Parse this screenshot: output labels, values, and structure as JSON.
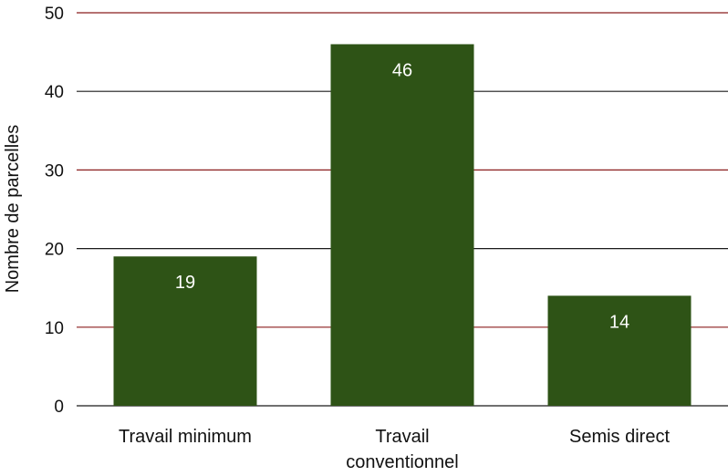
{
  "chart_data": {
    "type": "bar",
    "categories": [
      [
        "Travail minimum"
      ],
      [
        "Travail",
        "conventionnel"
      ],
      [
        "Semis direct"
      ]
    ],
    "values": [
      19,
      46,
      14
    ],
    "data_labels": [
      "19",
      "46",
      "14"
    ],
    "title": "",
    "xlabel": "",
    "ylabel": "Nombre de parcelles",
    "ylim": [
      0,
      50
    ],
    "yticks": [
      0,
      10,
      20,
      30,
      40,
      50
    ],
    "ytick_labels": [
      "0",
      "10",
      "20",
      "30",
      "40",
      "50"
    ],
    "grid": true,
    "legend": "none",
    "colors": {
      "bar": "#2e5316",
      "grid_major": "#1a1a1a",
      "grid_minor": "#8b1f1f",
      "data_label": "#ffffff"
    }
  }
}
